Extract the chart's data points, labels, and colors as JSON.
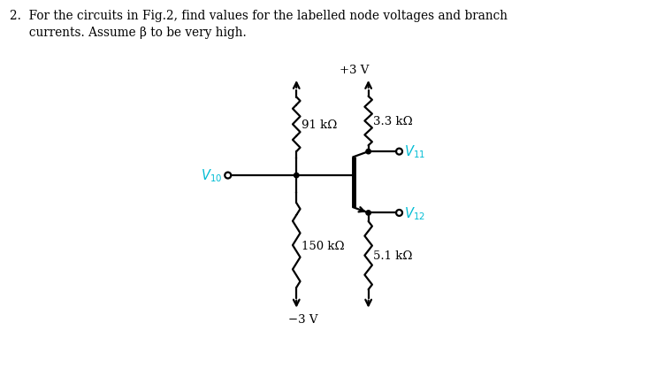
{
  "bg_color": "#ffffff",
  "text_color": "#000000",
  "circuit_color": "#000000",
  "label_color": "#00bcd4",
  "vplus_label": "+3 V",
  "vminus_label": "−3 V",
  "r1_label": "91 kΩ",
  "r2_label": "3.3 kΩ",
  "r3_label": "150 kΩ",
  "r4_label": "5.1 kΩ",
  "v10_label": "$V_{10}$",
  "v11_label": "$V_{11}$",
  "v12_label": "$V_{12}$",
  "title_line1": "2.  For the circuits in Fig.2, find values for the labelled node voltages and branch",
  "title_line2": "     currents. Assume β to be very high."
}
